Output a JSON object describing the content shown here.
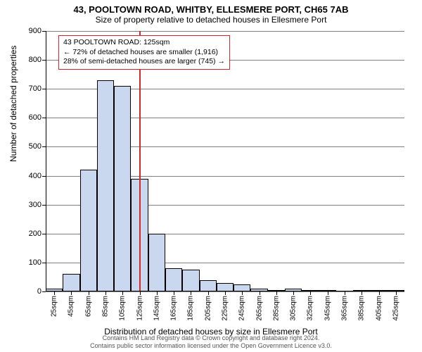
{
  "title": "43, POOLTOWN ROAD, WHITBY, ELLESMERE PORT, CH65 7AB",
  "subtitle": "Size of property relative to detached houses in Ellesmere Port",
  "y_axis_label": "Number of detached properties",
  "x_axis_label": "Distribution of detached houses by size in Ellesmere Port",
  "chart": {
    "type": "bar",
    "ylim": [
      0,
      900
    ],
    "ytick_step": 100,
    "categories": [
      "25sqm",
      "45sqm",
      "65sqm",
      "85sqm",
      "105sqm",
      "125sqm",
      "145sqm",
      "165sqm",
      "185sqm",
      "205sqm",
      "225sqm",
      "245sqm",
      "265sqm",
      "285sqm",
      "305sqm",
      "325sqm",
      "345sqm",
      "365sqm",
      "385sqm",
      "405sqm",
      "425sqm"
    ],
    "values": [
      10,
      60,
      420,
      730,
      710,
      390,
      200,
      80,
      75,
      40,
      30,
      25,
      10,
      5,
      10,
      2,
      2,
      0,
      1,
      1,
      1
    ],
    "bar_fill": "#c9d8ef",
    "bar_border": "#000000",
    "bar_width": 1.0,
    "grid_color": "#7f7f7f",
    "background_color": "#ffffff",
    "reference_line": {
      "x_index": 5,
      "color": "#d62728",
      "width": 2
    }
  },
  "annotation": {
    "line1": "43 POOLTOWN ROAD: 125sqm",
    "line2": "← 72% of detached houses are smaller (1,916)",
    "line3": "28% of semi-detached houses are larger (745) →",
    "border_color": "#d62728"
  },
  "footer": {
    "line1": "Contains HM Land Registry data © Crown copyright and database right 2024.",
    "line2": "Contains public sector information licensed under the Open Government Licence v3.0."
  }
}
